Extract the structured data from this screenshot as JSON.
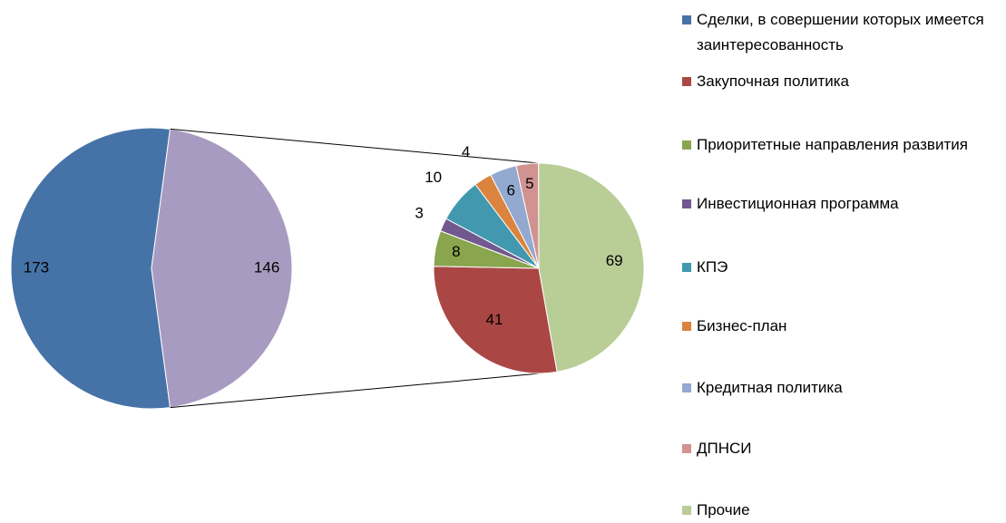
{
  "chart_data": {
    "type": "pie-of-pie",
    "categories": [
      "Сделки, в совершении которых имеется заинтересованность",
      "Закупочная политика",
      "Приоритетные направления развития",
      "Инвестиционная программа",
      "КПЭ",
      "Бизнес-план",
      "Кредитная политика",
      "ДПНСИ",
      "Прочие"
    ],
    "values": [
      173,
      41,
      8,
      3,
      10,
      4,
      6,
      5,
      69
    ],
    "colors": [
      "#4673a7",
      "#aa4744",
      "#89a54e",
      "#71588f",
      "#4198af",
      "#db843d",
      "#93a9cf",
      "#d19392",
      "#b9cd96"
    ],
    "other_value": 146,
    "other_color": "#a89bc1",
    "legend": "right"
  }
}
